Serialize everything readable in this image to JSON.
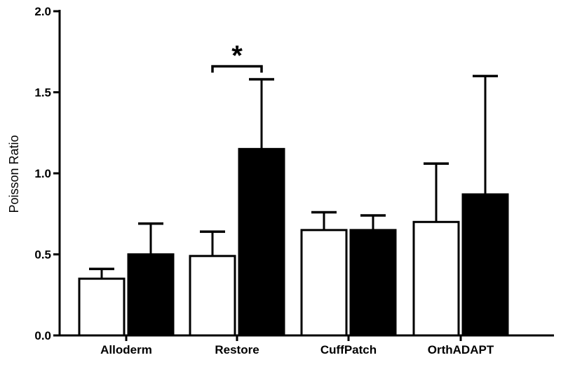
{
  "chart_data": {
    "type": "bar",
    "title": "",
    "xlabel": "",
    "ylabel": "Poisson Ratio",
    "ylim": [
      0,
      2.0
    ],
    "yticks": [
      "0.0",
      "0.5",
      "1.0",
      "1.5",
      "2.0"
    ],
    "categories": [
      "Alloderm",
      "Restore",
      "CuffPatch",
      "OrthADAPT"
    ],
    "grid": false,
    "legend": "none",
    "series": [
      {
        "fill": "#ffffff",
        "values": [
          0.35,
          0.49,
          0.65,
          0.7
        ],
        "error_upper": [
          0.41,
          0.64,
          0.76,
          1.06
        ]
      },
      {
        "fill": "#000000",
        "values": [
          0.5,
          1.15,
          0.65,
          0.87
        ],
        "error_upper": [
          0.69,
          1.58,
          0.74,
          1.6
        ]
      }
    ],
    "annotations": [
      {
        "text": "*",
        "category": "Restore",
        "bracket_y": 1.66
      }
    ]
  }
}
